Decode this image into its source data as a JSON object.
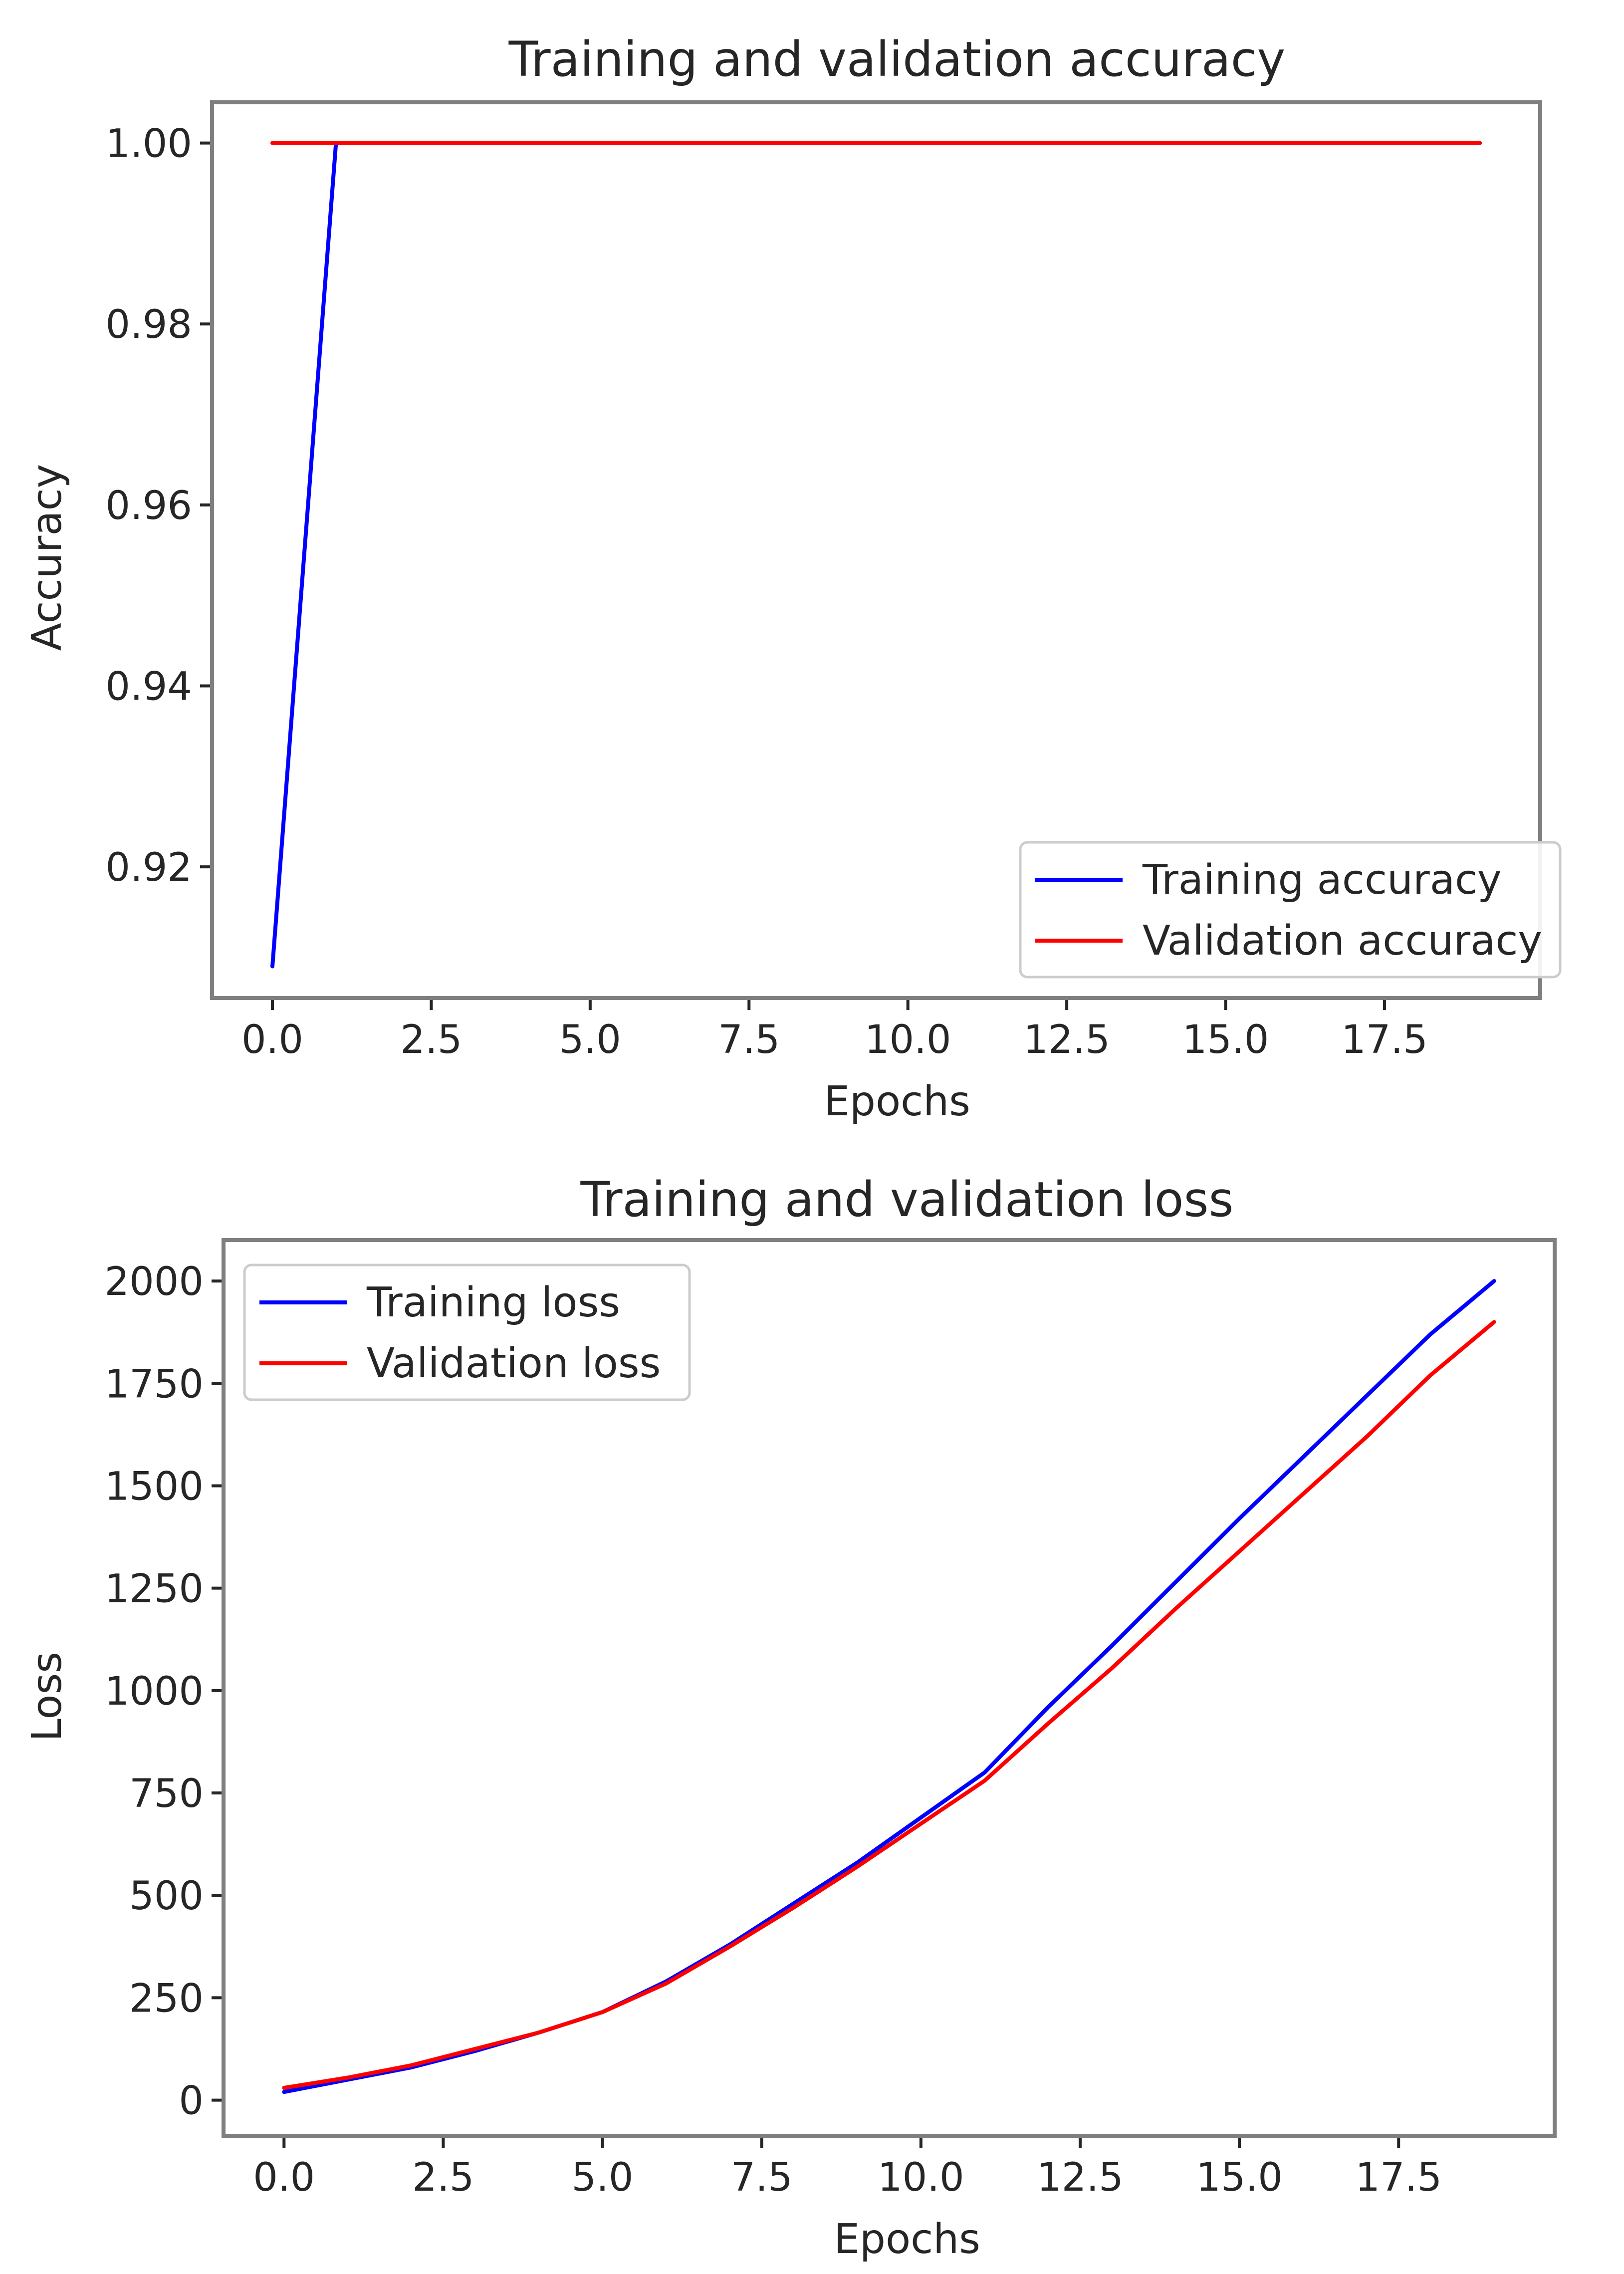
{
  "chart_data": [
    {
      "type": "line",
      "title": "Training and validation accuracy",
      "xlabel": "Epochs",
      "ylabel": "Accuracy",
      "xlim": [
        -0.95,
        19.95
      ],
      "ylim": [
        0.9055,
        1.0045
      ],
      "xticks": [
        0,
        2.5,
        5,
        7.5,
        10,
        12.5,
        15,
        17.5
      ],
      "xtick_labels": [
        "0.0",
        "2.5",
        "5.0",
        "7.5",
        "10.0",
        "12.5",
        "15.0",
        "17.5"
      ],
      "yticks": [
        0.92,
        0.94,
        0.96,
        0.98,
        1.0
      ],
      "ytick_labels": [
        "0.92",
        "0.94",
        "0.96",
        "0.98",
        "1.00"
      ],
      "grid": false,
      "legend_position": "lower right",
      "x": [
        0,
        1,
        2,
        3,
        4,
        5,
        6,
        7,
        8,
        9,
        10,
        11,
        12,
        13,
        14,
        15,
        16,
        17,
        18,
        19
      ],
      "series": [
        {
          "name": "Training accuracy",
          "color": "#0000ff",
          "values": [
            0.909,
            1.0,
            1.0,
            1.0,
            1.0,
            1.0,
            1.0,
            1.0,
            1.0,
            1.0,
            1.0,
            1.0,
            1.0,
            1.0,
            1.0,
            1.0,
            1.0,
            1.0,
            1.0,
            1.0
          ]
        },
        {
          "name": "Validation accuracy",
          "color": "#ff0000",
          "values": [
            1.0,
            1.0,
            1.0,
            1.0,
            1.0,
            1.0,
            1.0,
            1.0,
            1.0,
            1.0,
            1.0,
            1.0,
            1.0,
            1.0,
            1.0,
            1.0,
            1.0,
            1.0,
            1.0,
            1.0
          ]
        }
      ]
    },
    {
      "type": "line",
      "title": "Training and validation loss",
      "xlabel": "Epochs",
      "ylabel": "Loss",
      "xlim": [
        -0.95,
        19.95
      ],
      "ylim": [
        -87,
        2100
      ],
      "xticks": [
        0,
        2.5,
        5,
        7.5,
        10,
        12.5,
        15,
        17.5
      ],
      "xtick_labels": [
        "0.0",
        "2.5",
        "5.0",
        "7.5",
        "10.0",
        "12.5",
        "15.0",
        "17.5"
      ],
      "yticks": [
        0,
        250,
        500,
        750,
        1000,
        1250,
        1500,
        1750,
        2000
      ],
      "ytick_labels": [
        "0",
        "250",
        "500",
        "750",
        "1000",
        "1250",
        "1500",
        "1750",
        "2000"
      ],
      "grid": false,
      "legend_position": "upper left",
      "x": [
        0,
        1,
        2,
        3,
        4,
        5,
        6,
        7,
        8,
        9,
        10,
        11,
        12,
        13,
        14,
        15,
        16,
        17,
        18,
        19
      ],
      "series": [
        {
          "name": "Training loss",
          "color": "#0000ff",
          "values": [
            20,
            50,
            80,
            120,
            165,
            215,
            290,
            380,
            480,
            580,
            690,
            800,
            960,
            1110,
            1265,
            1420,
            1570,
            1720,
            1870,
            2000
          ]
        },
        {
          "name": "Validation loss",
          "color": "#ff0000",
          "values": [
            30,
            55,
            85,
            125,
            165,
            215,
            285,
            375,
            470,
            570,
            675,
            780,
            920,
            1055,
            1200,
            1340,
            1480,
            1620,
            1770,
            1900
          ]
        }
      ]
    }
  ]
}
